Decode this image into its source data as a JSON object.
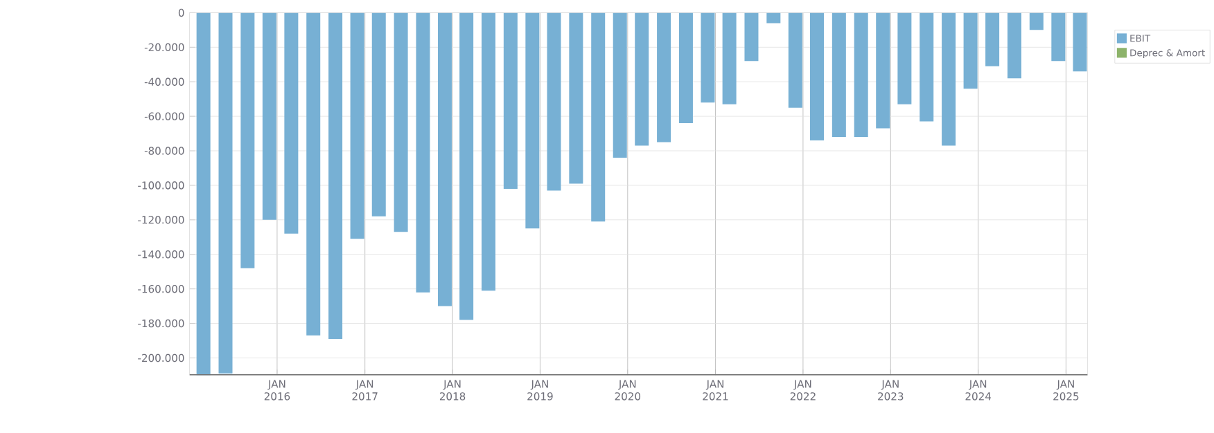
{
  "chart_data": {
    "type": "bar",
    "x": [
      "2015-02-28",
      "2015-05-31",
      "2015-08-31",
      "2015-11-30",
      "2016-02-29",
      "2016-05-31",
      "2016-08-31",
      "2016-11-30",
      "2017-02-28",
      "2017-05-31",
      "2017-08-31",
      "2017-11-30",
      "2018-02-28",
      "2018-05-31",
      "2018-08-31",
      "2018-11-30",
      "2019-02-28",
      "2019-05-31",
      "2019-08-31",
      "2019-11-30",
      "2020-02-29",
      "2020-05-31",
      "2020-08-31",
      "2020-11-30",
      "2021-02-28",
      "2021-05-31",
      "2021-08-31",
      "2021-11-30",
      "2022-02-28",
      "2022-05-31",
      "2022-08-31",
      "2022-11-30",
      "2023-02-28",
      "2023-05-31",
      "2023-08-31",
      "2023-11-30",
      "2024-02-29",
      "2024-05-31",
      "2024-08-31",
      "2024-11-30",
      "2025-02-28"
    ],
    "series": [
      {
        "name": "EBIT",
        "color": "#77b0d4",
        "values": [
          -210000,
          -209000,
          -148000,
          -120000,
          -128000,
          -187000,
          -189000,
          -131000,
          -118000,
          -127000,
          -162000,
          -170000,
          -178000,
          -161000,
          -102000,
          -125000,
          -103000,
          -99000,
          -121000,
          -84000,
          -77000,
          -75000,
          -64000,
          -52000,
          -53000,
          -28000,
          -6000,
          -55000,
          -74000,
          -72000,
          -72000,
          -67000,
          -53000,
          -63000,
          -77000,
          -44000,
          -31000,
          -38000,
          -10000,
          -28000,
          -34000
        ]
      },
      {
        "name": "Deprec & Amort",
        "color": "#8db36a",
        "values": [
          null,
          null,
          null,
          null,
          null,
          null,
          null,
          null,
          null,
          null,
          null,
          null,
          null,
          null,
          null,
          null,
          null,
          null,
          null,
          null,
          null,
          null,
          null,
          null,
          null,
          null,
          null,
          null,
          null,
          null,
          null,
          null,
          null,
          null,
          null,
          null,
          null,
          null,
          null,
          null,
          null
        ]
      }
    ],
    "xlim": [
      "2015-01-01",
      "2025-04-01"
    ],
    "xticks": [
      {
        "value": "2016-01-01",
        "label": "JAN 2016"
      },
      {
        "value": "2017-01-01",
        "label": "JAN 2017"
      },
      {
        "value": "2018-01-01",
        "label": "JAN 2018"
      },
      {
        "value": "2019-01-01",
        "label": "JAN 2019"
      },
      {
        "value": "2020-01-01",
        "label": "JAN 2020"
      },
      {
        "value": "2021-01-01",
        "label": "JAN 2021"
      },
      {
        "value": "2022-01-01",
        "label": "JAN 2022"
      },
      {
        "value": "2023-01-01",
        "label": "JAN 2023"
      },
      {
        "value": "2024-01-01",
        "label": "JAN 2024"
      },
      {
        "value": "2025-01-01",
        "label": "JAN 2025"
      }
    ],
    "ylim": [
      -210000,
      0
    ],
    "yticks": [
      0,
      {
        "value": -20000,
        "label": "-20.000"
      },
      {
        "value": -40000,
        "label": "-40.000"
      },
      {
        "value": -60000,
        "label": "-60.000"
      },
      {
        "value": -80000,
        "label": "-80.000"
      },
      {
        "value": -100000,
        "label": "-100.000"
      },
      {
        "value": -120000,
        "label": "-120.000"
      },
      {
        "value": -140000,
        "label": "-140.000"
      },
      {
        "value": -160000,
        "label": "-160.000"
      },
      {
        "value": -180000,
        "label": "-180.000"
      },
      {
        "value": -200000,
        "label": "-200.000"
      }
    ],
    "grid": true,
    "legend": "top right"
  }
}
